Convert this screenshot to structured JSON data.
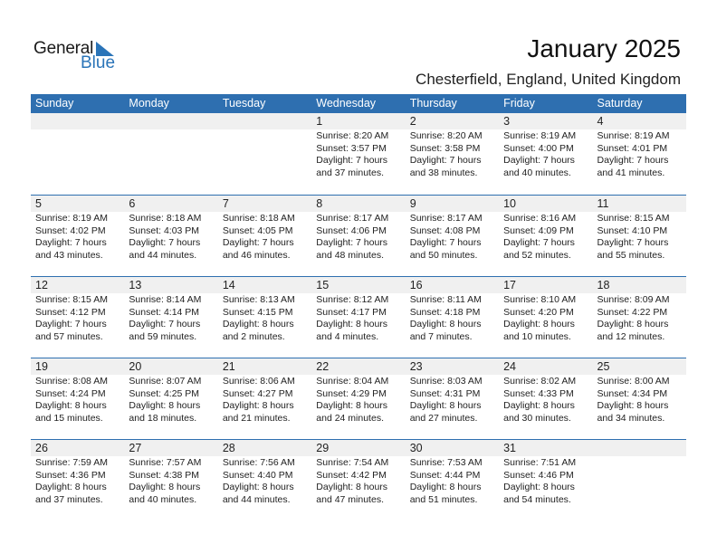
{
  "logo": {
    "text_general": "General",
    "text_blue": "Blue",
    "brand_color": "#2a74b8"
  },
  "header": {
    "title": "January 2025",
    "location": "Chesterfield, England, United Kingdom"
  },
  "colors": {
    "header_bg": "#2e6fb0",
    "day_band": "#f0f0f0"
  },
  "weekdays": [
    "Sunday",
    "Monday",
    "Tuesday",
    "Wednesday",
    "Thursday",
    "Friday",
    "Saturday"
  ],
  "weeks": [
    [
      null,
      null,
      null,
      {
        "day": "1",
        "sunrise": "Sunrise: 8:20 AM",
        "sunset": "Sunset: 3:57 PM",
        "daylight": "Daylight: 7 hours",
        "minutes": "and 37 minutes."
      },
      {
        "day": "2",
        "sunrise": "Sunrise: 8:20 AM",
        "sunset": "Sunset: 3:58 PM",
        "daylight": "Daylight: 7 hours",
        "minutes": "and 38 minutes."
      },
      {
        "day": "3",
        "sunrise": "Sunrise: 8:19 AM",
        "sunset": "Sunset: 4:00 PM",
        "daylight": "Daylight: 7 hours",
        "minutes": "and 40 minutes."
      },
      {
        "day": "4",
        "sunrise": "Sunrise: 8:19 AM",
        "sunset": "Sunset: 4:01 PM",
        "daylight": "Daylight: 7 hours",
        "minutes": "and 41 minutes."
      }
    ],
    [
      {
        "day": "5",
        "sunrise": "Sunrise: 8:19 AM",
        "sunset": "Sunset: 4:02 PM",
        "daylight": "Daylight: 7 hours",
        "minutes": "and 43 minutes."
      },
      {
        "day": "6",
        "sunrise": "Sunrise: 8:18 AM",
        "sunset": "Sunset: 4:03 PM",
        "daylight": "Daylight: 7 hours",
        "minutes": "and 44 minutes."
      },
      {
        "day": "7",
        "sunrise": "Sunrise: 8:18 AM",
        "sunset": "Sunset: 4:05 PM",
        "daylight": "Daylight: 7 hours",
        "minutes": "and 46 minutes."
      },
      {
        "day": "8",
        "sunrise": "Sunrise: 8:17 AM",
        "sunset": "Sunset: 4:06 PM",
        "daylight": "Daylight: 7 hours",
        "minutes": "and 48 minutes."
      },
      {
        "day": "9",
        "sunrise": "Sunrise: 8:17 AM",
        "sunset": "Sunset: 4:08 PM",
        "daylight": "Daylight: 7 hours",
        "minutes": "and 50 minutes."
      },
      {
        "day": "10",
        "sunrise": "Sunrise: 8:16 AM",
        "sunset": "Sunset: 4:09 PM",
        "daylight": "Daylight: 7 hours",
        "minutes": "and 52 minutes."
      },
      {
        "day": "11",
        "sunrise": "Sunrise: 8:15 AM",
        "sunset": "Sunset: 4:10 PM",
        "daylight": "Daylight: 7 hours",
        "minutes": "and 55 minutes."
      }
    ],
    [
      {
        "day": "12",
        "sunrise": "Sunrise: 8:15 AM",
        "sunset": "Sunset: 4:12 PM",
        "daylight": "Daylight: 7 hours",
        "minutes": "and 57 minutes."
      },
      {
        "day": "13",
        "sunrise": "Sunrise: 8:14 AM",
        "sunset": "Sunset: 4:14 PM",
        "daylight": "Daylight: 7 hours",
        "minutes": "and 59 minutes."
      },
      {
        "day": "14",
        "sunrise": "Sunrise: 8:13 AM",
        "sunset": "Sunset: 4:15 PM",
        "daylight": "Daylight: 8 hours",
        "minutes": "and 2 minutes."
      },
      {
        "day": "15",
        "sunrise": "Sunrise: 8:12 AM",
        "sunset": "Sunset: 4:17 PM",
        "daylight": "Daylight: 8 hours",
        "minutes": "and 4 minutes."
      },
      {
        "day": "16",
        "sunrise": "Sunrise: 8:11 AM",
        "sunset": "Sunset: 4:18 PM",
        "daylight": "Daylight: 8 hours",
        "minutes": "and 7 minutes."
      },
      {
        "day": "17",
        "sunrise": "Sunrise: 8:10 AM",
        "sunset": "Sunset: 4:20 PM",
        "daylight": "Daylight: 8 hours",
        "minutes": "and 10 minutes."
      },
      {
        "day": "18",
        "sunrise": "Sunrise: 8:09 AM",
        "sunset": "Sunset: 4:22 PM",
        "daylight": "Daylight: 8 hours",
        "minutes": "and 12 minutes."
      }
    ],
    [
      {
        "day": "19",
        "sunrise": "Sunrise: 8:08 AM",
        "sunset": "Sunset: 4:24 PM",
        "daylight": "Daylight: 8 hours",
        "minutes": "and 15 minutes."
      },
      {
        "day": "20",
        "sunrise": "Sunrise: 8:07 AM",
        "sunset": "Sunset: 4:25 PM",
        "daylight": "Daylight: 8 hours",
        "minutes": "and 18 minutes."
      },
      {
        "day": "21",
        "sunrise": "Sunrise: 8:06 AM",
        "sunset": "Sunset: 4:27 PM",
        "daylight": "Daylight: 8 hours",
        "minutes": "and 21 minutes."
      },
      {
        "day": "22",
        "sunrise": "Sunrise: 8:04 AM",
        "sunset": "Sunset: 4:29 PM",
        "daylight": "Daylight: 8 hours",
        "minutes": "and 24 minutes."
      },
      {
        "day": "23",
        "sunrise": "Sunrise: 8:03 AM",
        "sunset": "Sunset: 4:31 PM",
        "daylight": "Daylight: 8 hours",
        "minutes": "and 27 minutes."
      },
      {
        "day": "24",
        "sunrise": "Sunrise: 8:02 AM",
        "sunset": "Sunset: 4:33 PM",
        "daylight": "Daylight: 8 hours",
        "minutes": "and 30 minutes."
      },
      {
        "day": "25",
        "sunrise": "Sunrise: 8:00 AM",
        "sunset": "Sunset: 4:34 PM",
        "daylight": "Daylight: 8 hours",
        "minutes": "and 34 minutes."
      }
    ],
    [
      {
        "day": "26",
        "sunrise": "Sunrise: 7:59 AM",
        "sunset": "Sunset: 4:36 PM",
        "daylight": "Daylight: 8 hours",
        "minutes": "and 37 minutes."
      },
      {
        "day": "27",
        "sunrise": "Sunrise: 7:57 AM",
        "sunset": "Sunset: 4:38 PM",
        "daylight": "Daylight: 8 hours",
        "minutes": "and 40 minutes."
      },
      {
        "day": "28",
        "sunrise": "Sunrise: 7:56 AM",
        "sunset": "Sunset: 4:40 PM",
        "daylight": "Daylight: 8 hours",
        "minutes": "and 44 minutes."
      },
      {
        "day": "29",
        "sunrise": "Sunrise: 7:54 AM",
        "sunset": "Sunset: 4:42 PM",
        "daylight": "Daylight: 8 hours",
        "minutes": "and 47 minutes."
      },
      {
        "day": "30",
        "sunrise": "Sunrise: 7:53 AM",
        "sunset": "Sunset: 4:44 PM",
        "daylight": "Daylight: 8 hours",
        "minutes": "and 51 minutes."
      },
      {
        "day": "31",
        "sunrise": "Sunrise: 7:51 AM",
        "sunset": "Sunset: 4:46 PM",
        "daylight": "Daylight: 8 hours",
        "minutes": "and 54 minutes."
      },
      null
    ]
  ]
}
